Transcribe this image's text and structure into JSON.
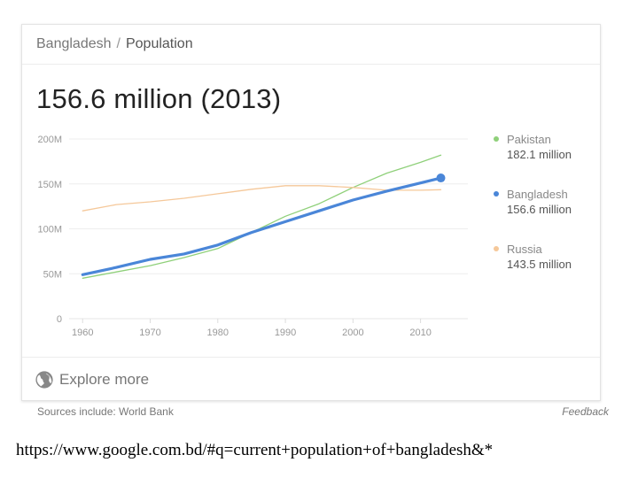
{
  "breadcrumb": {
    "country": "Bangladesh",
    "separator": "/",
    "topic": "Population"
  },
  "headline": "156.6 million (2013)",
  "chart_data": {
    "type": "line",
    "xlim": [
      1958,
      2017
    ],
    "ylim": [
      0,
      200
    ],
    "x_ticks": [
      "1960",
      "1970",
      "1980",
      "1990",
      "2000",
      "2010"
    ],
    "y_ticks": [
      "0",
      "50M",
      "100M",
      "150M",
      "200M"
    ],
    "y_tick_values": [
      0,
      50,
      100,
      150,
      200
    ],
    "x_tick_values": [
      1960,
      1970,
      1980,
      1990,
      2000,
      2010
    ],
    "grid": true,
    "legend_position": "right",
    "series": [
      {
        "name": "Pakistan",
        "value_label": "182.1 million",
        "color": "#8fd07a",
        "highlight": false,
        "x": [
          1960,
          1965,
          1970,
          1975,
          1980,
          1985,
          1990,
          1995,
          2000,
          2005,
          2010,
          2013
        ],
        "values": [
          45,
          52,
          59,
          68,
          78,
          96,
          114,
          128,
          146,
          162,
          174,
          182
        ]
      },
      {
        "name": "Bangladesh",
        "value_label": "156.6 million",
        "color": "#4a86d8",
        "highlight": true,
        "x": [
          1960,
          1965,
          1970,
          1975,
          1980,
          1985,
          1990,
          1995,
          2000,
          2005,
          2010,
          2013
        ],
        "values": [
          49,
          57,
          66,
          72,
          82,
          96,
          108,
          120,
          132,
          142,
          151,
          156.6
        ]
      },
      {
        "name": "Russia",
        "value_label": "143.5 million",
        "color": "#f5c89a",
        "highlight": false,
        "x": [
          1960,
          1965,
          1970,
          1975,
          1980,
          1985,
          1990,
          1995,
          2000,
          2005,
          2010,
          2013
        ],
        "values": [
          120,
          127,
          130,
          134,
          139,
          144,
          148,
          148,
          146,
          143,
          143,
          143.5
        ]
      }
    ]
  },
  "explore": {
    "label": "Explore more"
  },
  "sources": "Sources include: World Bank",
  "feedback": "Feedback",
  "url": "https://www.google.com.bd/#q=current+population+of+bangladesh&*"
}
